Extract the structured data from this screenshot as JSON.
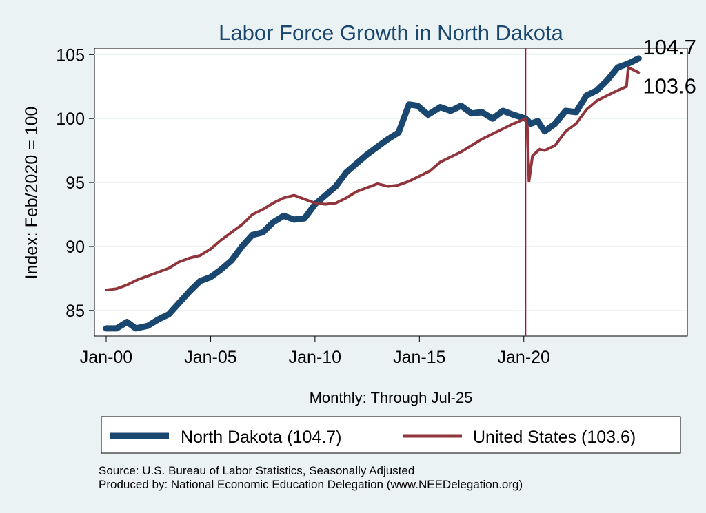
{
  "chart_data": {
    "type": "line",
    "title": "Labor Force Growth in North Dakota",
    "ylabel": "Index: Feb/2020 = 100",
    "xlabel": "Monthly: Through Jul-25",
    "x_ticks": [
      "Jan-00",
      "Jan-05",
      "Jan-10",
      "Jan-15",
      "Jan-20"
    ],
    "y_ticks": [
      85,
      90,
      95,
      100,
      105
    ],
    "ylim": [
      83,
      105.5
    ],
    "xlim": [
      "2000-01",
      "2027-11"
    ],
    "reference_line": "2020-02",
    "grid": true,
    "legend_position": "bottom",
    "series": [
      {
        "name": "North Dakota (104.7)",
        "color": "#1A476F",
        "end_label": "104.7",
        "points": [
          [
            "2000-01",
            83.6
          ],
          [
            "2000-07",
            83.6
          ],
          [
            "2001-01",
            84.1
          ],
          [
            "2001-06",
            83.6
          ],
          [
            "2002-01",
            83.8
          ],
          [
            "2002-07",
            84.3
          ],
          [
            "2003-01",
            84.7
          ],
          [
            "2003-07",
            85.6
          ],
          [
            "2004-01",
            86.5
          ],
          [
            "2004-07",
            87.3
          ],
          [
            "2005-01",
            87.6
          ],
          [
            "2005-07",
            88.2
          ],
          [
            "2006-01",
            88.9
          ],
          [
            "2006-07",
            90.0
          ],
          [
            "2007-01",
            90.9
          ],
          [
            "2007-07",
            91.1
          ],
          [
            "2008-01",
            91.9
          ],
          [
            "2008-07",
            92.4
          ],
          [
            "2009-01",
            92.1
          ],
          [
            "2009-07",
            92.2
          ],
          [
            "2010-01",
            93.3
          ],
          [
            "2010-07",
            94.0
          ],
          [
            "2011-01",
            94.7
          ],
          [
            "2011-07",
            95.8
          ],
          [
            "2012-01",
            96.5
          ],
          [
            "2012-07",
            97.2
          ],
          [
            "2013-01",
            97.8
          ],
          [
            "2013-07",
            98.4
          ],
          [
            "2014-01",
            98.9
          ],
          [
            "2014-07",
            101.1
          ],
          [
            "2014-12",
            101.0
          ],
          [
            "2015-06",
            100.3
          ],
          [
            "2016-01",
            100.9
          ],
          [
            "2016-07",
            100.6
          ],
          [
            "2017-01",
            101.0
          ],
          [
            "2017-07",
            100.4
          ],
          [
            "2018-01",
            100.5
          ],
          [
            "2018-07",
            100.0
          ],
          [
            "2019-01",
            100.6
          ],
          [
            "2019-07",
            100.3
          ],
          [
            "2020-02",
            100.0
          ],
          [
            "2020-05",
            99.6
          ],
          [
            "2020-09",
            99.8
          ],
          [
            "2021-01",
            99.0
          ],
          [
            "2021-07",
            99.6
          ],
          [
            "2022-01",
            100.6
          ],
          [
            "2022-07",
            100.5
          ],
          [
            "2023-01",
            101.8
          ],
          [
            "2023-07",
            102.2
          ],
          [
            "2024-01",
            103.0
          ],
          [
            "2024-07",
            104.0
          ],
          [
            "2025-01",
            104.3
          ],
          [
            "2025-07",
            104.7
          ]
        ]
      },
      {
        "name": "United States (103.6)",
        "color": "#90353B",
        "end_label": "103.6",
        "points": [
          [
            "2000-01",
            86.6
          ],
          [
            "2000-07",
            86.7
          ],
          [
            "2001-01",
            87.0
          ],
          [
            "2001-07",
            87.4
          ],
          [
            "2002-01",
            87.7
          ],
          [
            "2002-07",
            88.0
          ],
          [
            "2003-01",
            88.3
          ],
          [
            "2003-07",
            88.8
          ],
          [
            "2004-01",
            89.1
          ],
          [
            "2004-07",
            89.3
          ],
          [
            "2005-01",
            89.8
          ],
          [
            "2005-07",
            90.5
          ],
          [
            "2006-01",
            91.1
          ],
          [
            "2006-07",
            91.7
          ],
          [
            "2007-01",
            92.5
          ],
          [
            "2007-07",
            92.9
          ],
          [
            "2008-01",
            93.4
          ],
          [
            "2008-07",
            93.8
          ],
          [
            "2009-01",
            94.0
          ],
          [
            "2009-07",
            93.7
          ],
          [
            "2010-01",
            93.4
          ],
          [
            "2010-07",
            93.3
          ],
          [
            "2011-01",
            93.4
          ],
          [
            "2011-07",
            93.8
          ],
          [
            "2012-01",
            94.3
          ],
          [
            "2012-07",
            94.6
          ],
          [
            "2013-01",
            94.9
          ],
          [
            "2013-07",
            94.7
          ],
          [
            "2014-01",
            94.8
          ],
          [
            "2014-07",
            95.1
          ],
          [
            "2015-01",
            95.5
          ],
          [
            "2015-07",
            95.9
          ],
          [
            "2016-01",
            96.6
          ],
          [
            "2016-07",
            97.0
          ],
          [
            "2017-01",
            97.4
          ],
          [
            "2017-07",
            97.9
          ],
          [
            "2018-01",
            98.4
          ],
          [
            "2018-07",
            98.8
          ],
          [
            "2019-01",
            99.2
          ],
          [
            "2019-07",
            99.6
          ],
          [
            "2020-02",
            100.0
          ],
          [
            "2020-03",
            99.4
          ],
          [
            "2020-04",
            95.1
          ],
          [
            "2020-06",
            97.1
          ],
          [
            "2020-10",
            97.6
          ],
          [
            "2021-01",
            97.5
          ],
          [
            "2021-07",
            97.9
          ],
          [
            "2022-01",
            99.0
          ],
          [
            "2022-07",
            99.6
          ],
          [
            "2023-01",
            100.7
          ],
          [
            "2023-07",
            101.4
          ],
          [
            "2024-01",
            101.8
          ],
          [
            "2024-07",
            102.2
          ],
          [
            "2024-12",
            102.5
          ],
          [
            "2025-01",
            104.0
          ],
          [
            "2025-07",
            103.6
          ]
        ]
      }
    ]
  },
  "footer": {
    "source": "Source: U.S. Bureau of Labor Statistics, Seasonally Adjusted",
    "produced_by": "Produced by: National Economic Education Delegation (www.NEEDelegation.org)"
  }
}
